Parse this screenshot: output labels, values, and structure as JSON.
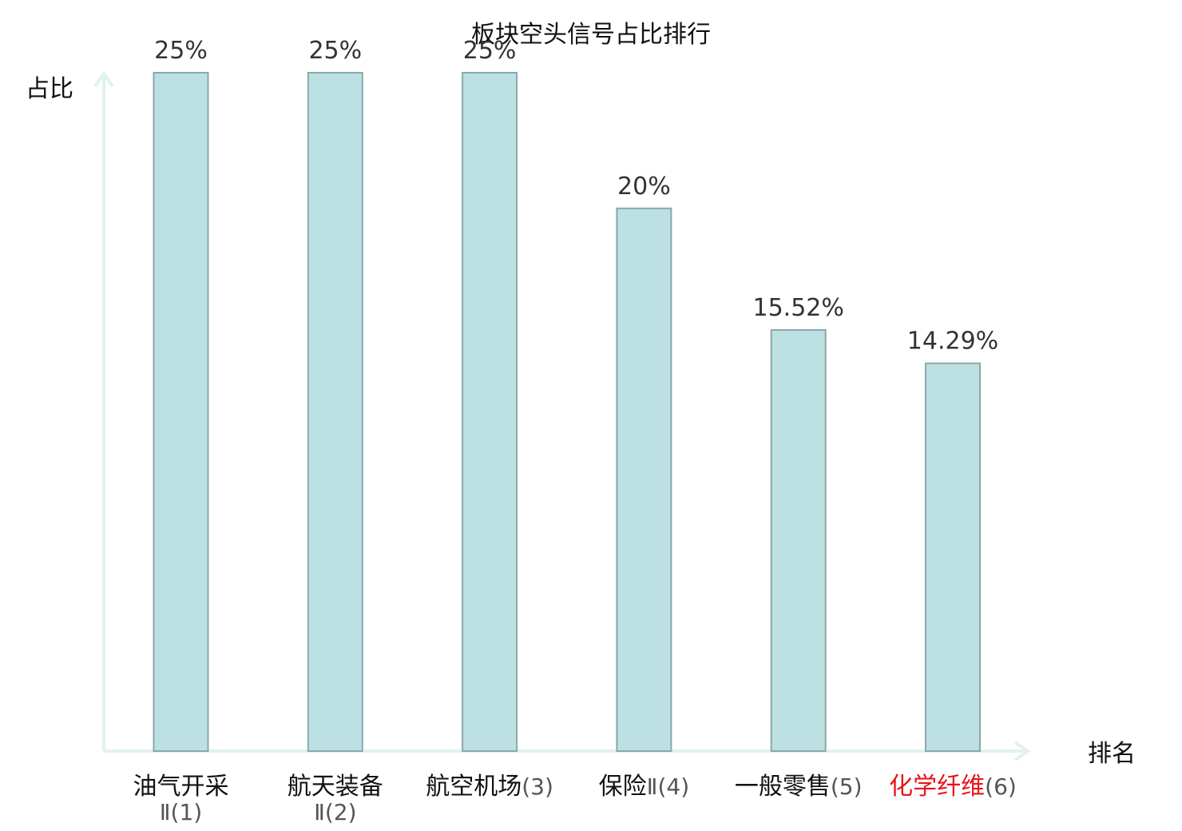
{
  "chart_data": {
    "type": "bar",
    "title": "板块空头信号占比排行",
    "xlabel": "排名",
    "ylabel": "占比",
    "ylim": [
      0,
      25
    ],
    "grid": false,
    "legend": "none",
    "categories": [
      {
        "name": "油气开采",
        "rank": "Ⅱ(1)",
        "highlight": false
      },
      {
        "name": "航天装备",
        "rank": "Ⅱ(2)",
        "highlight": false
      },
      {
        "name": "航空机场",
        "rank": "(3)",
        "highlight": false
      },
      {
        "name": "保险",
        "rank": "Ⅱ(4)",
        "highlight": false
      },
      {
        "name": "一般零售",
        "rank": "(5)",
        "highlight": false
      },
      {
        "name": "化学纤维",
        "rank": "(6)",
        "highlight": true
      }
    ],
    "values": [
      25,
      25,
      25,
      20,
      15.52,
      14.29
    ],
    "value_labels": [
      "25%",
      "25%",
      "25%",
      "20%",
      "15.52%",
      "14.29%"
    ]
  },
  "colors": {
    "bar_fill": "#bde1e3",
    "bar_stroke": "#8aa8ab",
    "axis": "#dff2ef",
    "highlight_text": "#e8141b",
    "text": "#111111"
  }
}
